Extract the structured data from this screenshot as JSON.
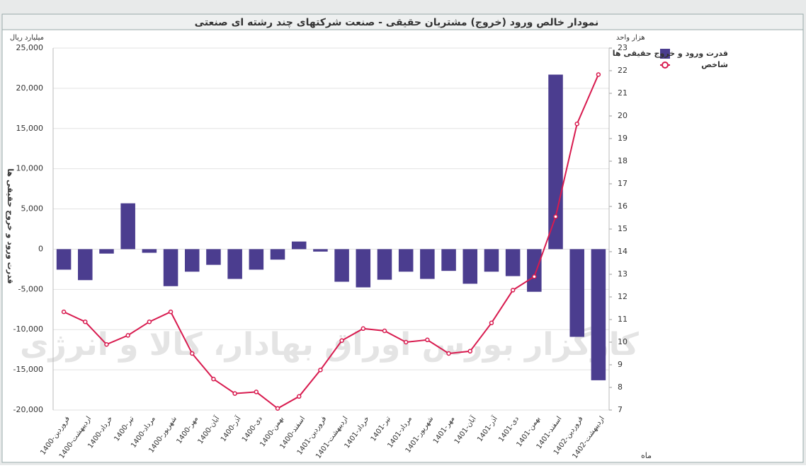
{
  "chart_data": {
    "type": "bar-line",
    "title": "نمودار خالص ورود (خروج) مشتریان حقیقی - صنعت شرکتهای چند رشته ای صنعتی",
    "y_unit": "میلیارد ریال",
    "y2_unit": "هزار واحد",
    "ylabel": "قدرت ورود و خروج حقیقی ها",
    "xlabel": "ماه",
    "watermark": "کارگزار بورس اوراق بهادار، کالا و انرژی",
    "categories": [
      "1400-فروردین",
      "1400-اردیبهشت",
      "1400-خرداد",
      "1400-تیر",
      "1400-مرداد",
      "1400-شهریور",
      "1400-مهر",
      "1400-آبان",
      "1400-آذر",
      "1400-دی",
      "1400-بهمن",
      "1400-اسفند",
      "1401-فروردین",
      "1401-اردیبهشت",
      "1401-خرداد",
      "1401-تیر",
      "1401-مرداد",
      "1401-شهریور",
      "1401-مهر",
      "1401-آبان",
      "1401-آذر",
      "1401-دی",
      "1401-بهمن",
      "1401-اسفند",
      "1402-فروردین",
      "1402-اردیبهشت"
    ],
    "series": [
      {
        "name": "قدرت ورود و خروج حقیقی ها",
        "type": "bar",
        "color": "#4b3d8f",
        "values": [
          -2550,
          -3850,
          -550,
          5700,
          -450,
          -4600,
          -2800,
          -1950,
          -3700,
          -2550,
          -1300,
          950,
          -300,
          -4050,
          -4750,
          -3800,
          -2800,
          -3700,
          -2700,
          -4300,
          -2800,
          -3350,
          -5300,
          21700,
          -10900,
          -16300
        ]
      },
      {
        "name": "شاخص",
        "type": "line",
        "axis": "y2",
        "color": "#d81b4f",
        "values": [
          11.34,
          10.9,
          9.9,
          10.3,
          10.9,
          11.34,
          9.5,
          8.37,
          7.73,
          7.8,
          7.07,
          7.6,
          8.77,
          10.07,
          10.6,
          10.5,
          10.0,
          10.1,
          9.5,
          9.6,
          10.85,
          12.3,
          12.9,
          15.55,
          19.65,
          21.83
        ]
      }
    ],
    "ylim": [
      -20000,
      25000
    ],
    "yticks": [
      {
        "value": -20000,
        "label": "-20,000"
      },
      {
        "value": -15000,
        "label": "-15,000"
      },
      {
        "value": -10000,
        "label": "-10,000"
      },
      {
        "value": -5000,
        "label": "-5,000"
      },
      0,
      {
        "value": 5000,
        "label": "5,000"
      },
      {
        "value": 10000,
        "label": "10,000"
      },
      {
        "value": 15000,
        "label": "15,000"
      },
      {
        "value": 20000,
        "label": "20,000"
      },
      {
        "value": 25000,
        "label": "25,000"
      }
    ],
    "y2lim": [
      7,
      23
    ],
    "y2ticks": [
      7,
      8,
      9,
      10,
      11,
      12,
      13,
      14,
      15,
      16,
      17,
      18,
      19,
      20,
      21,
      22,
      23
    ],
    "grid": true
  }
}
